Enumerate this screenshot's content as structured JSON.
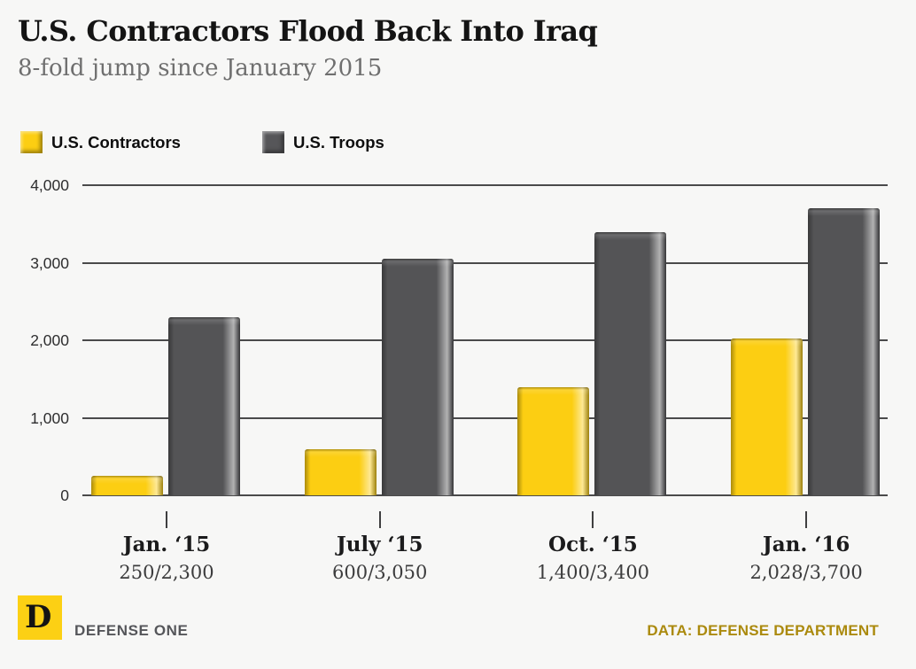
{
  "header": {
    "title": "U.S. Contractors Flood Back Into Iraq",
    "subtitle": "8-fold jump since January 2015"
  },
  "legend": {
    "items": [
      {
        "label": "U.S. Contractors",
        "color": "#fcce12"
      },
      {
        "label": "U.S. Troops",
        "color": "#565659"
      }
    ]
  },
  "chart_data": {
    "type": "bar",
    "categories": [
      "Jan. ‘15",
      "July ‘15",
      "Oct. ‘15",
      "Jan. ‘16"
    ],
    "category_sublabels": [
      "250/2,300",
      "600/3,050",
      "1,400/3,400",
      "2,028/3,700"
    ],
    "series": [
      {
        "name": "U.S. Contractors",
        "color": "#fcce12",
        "values": [
          250,
          600,
          1400,
          2028
        ]
      },
      {
        "name": "U.S. Troops",
        "color": "#545456",
        "values": [
          2300,
          3050,
          3400,
          3700
        ]
      }
    ],
    "ylim": [
      0,
      4000
    ],
    "yticks": [
      0,
      1000,
      2000,
      3000,
      4000
    ],
    "ytick_labels": [
      "0",
      "1,000",
      "2,000",
      "3,000",
      "4,000"
    ],
    "grid": true,
    "legend_position": "top-left",
    "xlabel": "",
    "ylabel": ""
  },
  "footer": {
    "logo_letter": "D",
    "brand": "DEFENSE ONE",
    "source": "DATA: DEFENSE DEPARTMENT",
    "source_color": "#ab8a0e",
    "logo_color": "#fcd014"
  }
}
